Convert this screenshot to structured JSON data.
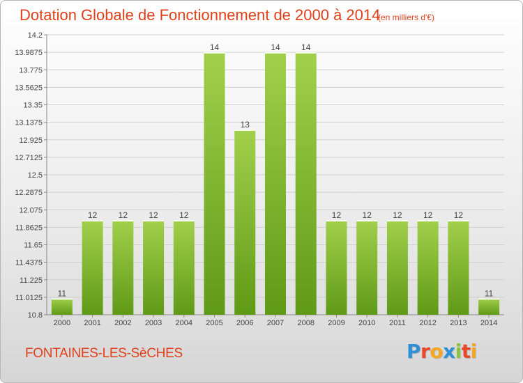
{
  "header": {
    "title": "Dotation Globale de Fonctionnement de 2000 à 2014",
    "unit_note": "(en milliers d'€)"
  },
  "footer": {
    "commune": "FONTAINES-LES-SèCHES",
    "brand_letters": [
      "P",
      "r",
      "o",
      "x",
      "i",
      "t",
      "i"
    ],
    "brand_colors": [
      "#2f8fd5",
      "#e8472a",
      "#f5a623",
      "#2f8fd5",
      "#8bc53f",
      "#e8472a",
      "#f5a623"
    ]
  },
  "colors": {
    "title": "#e0401b",
    "bar_light": "#a2d04c",
    "bar_dark": "#5f9a17",
    "grid": "#cfcfcf"
  },
  "chart_data": {
    "type": "bar",
    "title": "Dotation Globale de Fonctionnement de 2000 à 2014",
    "xlabel": "",
    "ylabel": "",
    "unit": "en milliers d'€",
    "categories": [
      "2000",
      "2001",
      "2002",
      "2003",
      "2004",
      "2005",
      "2006",
      "2007",
      "2008",
      "2009",
      "2010",
      "2011",
      "2012",
      "2013",
      "2014"
    ],
    "values": [
      11,
      12,
      12,
      12,
      12,
      14,
      13,
      14,
      14,
      12,
      12,
      12,
      12,
      12,
      11
    ],
    "plotted_values": [
      11.0,
      11.95,
      11.95,
      11.95,
      11.95,
      13.99,
      13.05,
      13.99,
      13.99,
      11.95,
      11.95,
      11.95,
      11.95,
      11.95,
      11.0
    ],
    "data_labels": [
      "11",
      "12",
      "12",
      "12",
      "12",
      "14",
      "13",
      "14",
      "14",
      "12",
      "12",
      "12",
      "12",
      "12",
      "11"
    ],
    "ylim": [
      10.8,
      14.2
    ],
    "yticks": [
      10.8,
      11.0125,
      11.225,
      11.4375,
      11.65,
      11.8625,
      12.075,
      12.2875,
      12.5,
      12.7125,
      12.925,
      13.1375,
      13.35,
      13.5625,
      13.775,
      13.9875,
      14.2
    ],
    "ytick_labels": [
      "10.8",
      "11.0125",
      "11.225",
      "11.4375",
      "11.65",
      "11.8625",
      "12.075",
      "12.2875",
      "12.5",
      "12.7125",
      "12.925",
      "13.1375",
      "13.35",
      "13.5625",
      "13.775",
      "13.9875",
      "14.2"
    ],
    "grid": true,
    "legend": "none"
  }
}
